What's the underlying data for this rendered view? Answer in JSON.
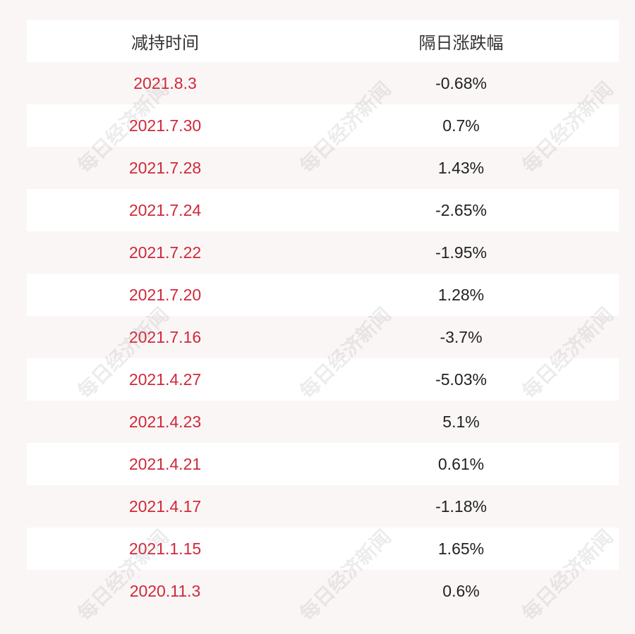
{
  "table": {
    "headers": [
      "减持时间",
      "隔日涨跌幅"
    ],
    "rows": [
      [
        "2021.8.3",
        "-0.68%"
      ],
      [
        "2021.7.30",
        "0.7%"
      ],
      [
        "2021.7.28",
        "1.43%"
      ],
      [
        "2021.7.24",
        "-2.65%"
      ],
      [
        "2021.7.22",
        "-1.95%"
      ],
      [
        "2021.7.20",
        "1.28%"
      ],
      [
        "2021.7.16",
        "-3.7%"
      ],
      [
        "2021.4.27",
        "-5.03%"
      ],
      [
        "2021.4.23",
        "5.1%"
      ],
      [
        "2021.4.21",
        "0.61%"
      ],
      [
        "2021.4.17",
        "-1.18%"
      ],
      [
        "2021.1.15",
        "1.65%"
      ],
      [
        "2020.11.3",
        "0.6%"
      ]
    ]
  },
  "watermark": "每日经济新闻",
  "colors": {
    "date_text": "#d0283a",
    "value_text": "#222222",
    "stripe": "#ffffff",
    "background": "#faf6f6"
  }
}
